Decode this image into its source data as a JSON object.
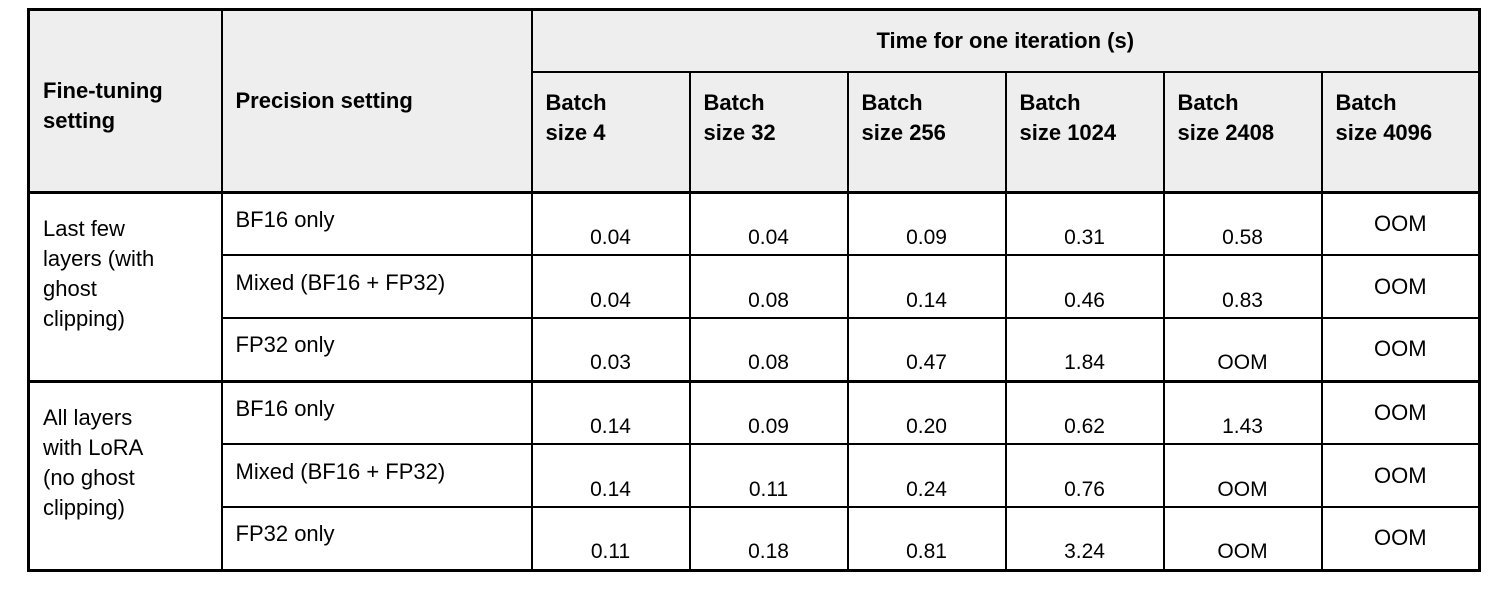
{
  "table": {
    "colors": {
      "header_bg": "#eeeeee",
      "border": "#000000",
      "text": "#000000",
      "body_bg": "#ffffff"
    },
    "header": {
      "fine_tuning": "Fine-tuning\nsetting",
      "precision": "Precision setting",
      "time_group": "Time for one iteration (s)",
      "batch": [
        "Batch\nsize 4",
        "Batch\nsize 32",
        "Batch\nsize 256",
        "Batch\nsize 1024",
        "Batch\nsize 2408",
        "Batch\nsize 4096"
      ]
    },
    "groups": [
      {
        "setting": "Last few\nlayers (with\nghost\nclipping)",
        "rows": [
          {
            "precision": "BF16 only",
            "values": [
              "0.04",
              "0.04",
              "0.09",
              "0.31",
              "0.58",
              "OOM"
            ]
          },
          {
            "precision": "Mixed (BF16 + FP32)",
            "values": [
              "0.04",
              "0.08",
              "0.14",
              "0.46",
              "0.83",
              "OOM"
            ]
          },
          {
            "precision": "FP32 only",
            "values": [
              "0.03",
              "0.08",
              "0.47",
              "1.84",
              "OOM",
              "OOM"
            ]
          }
        ]
      },
      {
        "setting": "All layers\nwith LoRA\n(no ghost\nclipping)",
        "rows": [
          {
            "precision": "BF16 only",
            "values": [
              "0.14",
              "0.09",
              "0.20",
              "0.62",
              "1.43",
              "OOM"
            ]
          },
          {
            "precision": "Mixed (BF16 + FP32)",
            "values": [
              "0.14",
              "0.11",
              "0.24",
              "0.76",
              "OOM",
              "OOM"
            ]
          },
          {
            "precision": "FP32 only",
            "values": [
              "0.11",
              "0.18",
              "0.81",
              "3.24",
              "OOM",
              "OOM"
            ]
          }
        ]
      }
    ]
  }
}
